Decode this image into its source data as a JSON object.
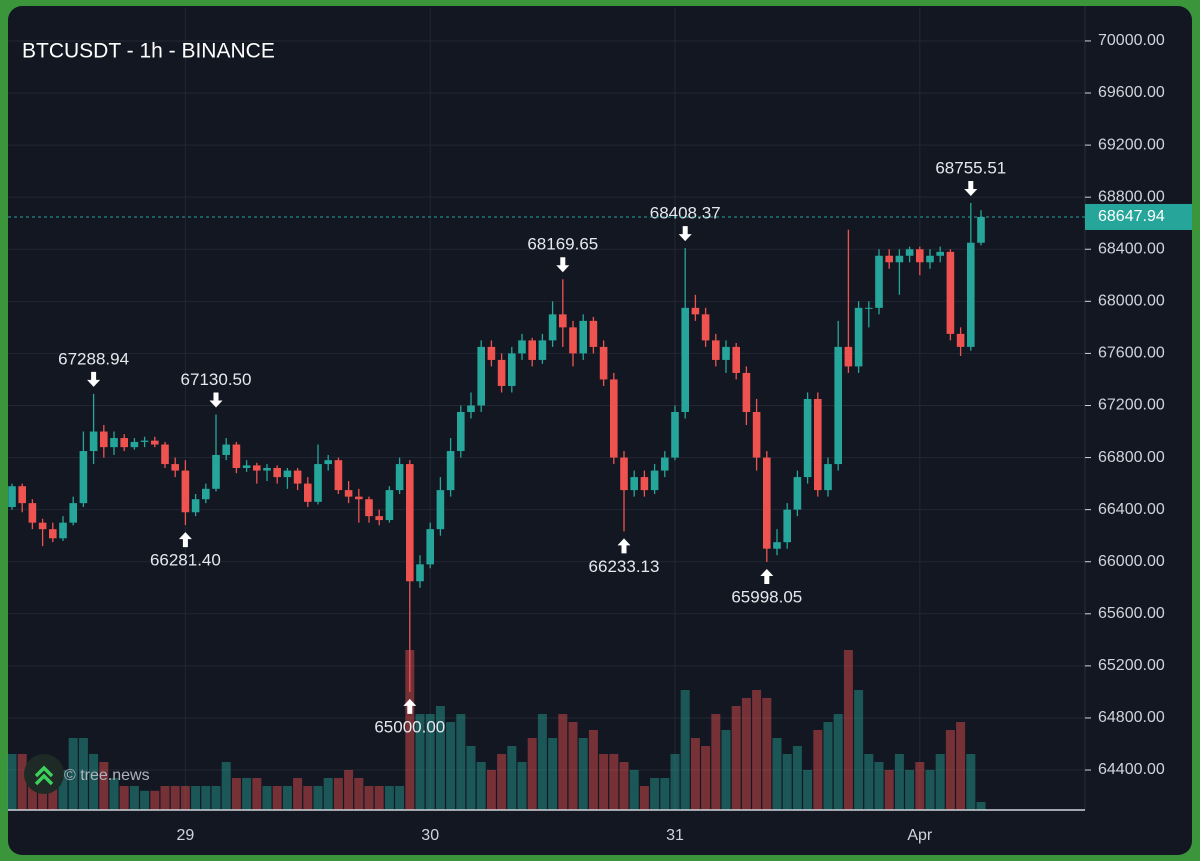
{
  "chart_data": {
    "type": "candlestick",
    "title": "BTCUSDT - 1h - BINANCE",
    "watermark": "© tree.news",
    "categories": [
      null,
      null,
      null,
      null,
      null,
      null,
      null,
      null,
      null,
      null,
      null,
      null,
      null,
      null,
      null,
      null,
      null,
      "29",
      null,
      null,
      null,
      null,
      null,
      null,
      null,
      null,
      null,
      null,
      null,
      null,
      null,
      null,
      null,
      null,
      null,
      null,
      null,
      null,
      null,
      null,
      null,
      "30",
      null,
      null,
      null,
      null,
      null,
      null,
      null,
      null,
      null,
      null,
      null,
      null,
      null,
      null,
      null,
      null,
      null,
      null,
      null,
      null,
      null,
      null,
      null,
      "31",
      null,
      null,
      null,
      null,
      null,
      null,
      null,
      null,
      null,
      null,
      null,
      null,
      null,
      null,
      null,
      null,
      null,
      null,
      null,
      null,
      null,
      null,
      null,
      "Apr",
      null,
      null,
      null,
      null,
      null,
      null
    ],
    "open": [
      66420,
      66580,
      66450,
      66300,
      66250,
      66180,
      66300,
      66450,
      66850,
      67000,
      66880,
      66950,
      66880,
      66920,
      66930,
      66900,
      66750,
      66700,
      66380,
      66480,
      66560,
      66820,
      66900,
      66720,
      66740,
      66700,
      66720,
      66650,
      66700,
      66600,
      66460,
      66750,
      66780,
      66550,
      66500,
      66480,
      66350,
      66320,
      66550,
      66750,
      65850,
      65980,
      66250,
      66550,
      66850,
      67150,
      67200,
      67650,
      67550,
      67350,
      67600,
      67700,
      67550,
      67700,
      67900,
      67800,
      67600,
      67850,
      67650,
      67400,
      66800,
      66550,
      66650,
      66550,
      66700,
      66800,
      67150,
      67950,
      67900,
      67700,
      67550,
      67650,
      67450,
      67150,
      66800,
      66100,
      66150,
      66400,
      66650,
      67250,
      66550,
      66750,
      67650,
      67500,
      67950,
      67950,
      68350,
      68300,
      68350,
      68400,
      68300,
      68350,
      68380,
      67750,
      67650,
      68450
    ],
    "high": [
      66600,
      66600,
      66480,
      66330,
      66300,
      66350,
      66500,
      67000,
      67288.94,
      67050,
      67000,
      66980,
      66950,
      66960,
      66960,
      66920,
      66800,
      66780,
      66520,
      66600,
      67130.5,
      66950,
      66920,
      66780,
      66760,
      66750,
      66740,
      66720,
      66720,
      66650,
      66900,
      66820,
      66800,
      66620,
      66560,
      66500,
      66400,
      66580,
      66800,
      66780,
      66050,
      66300,
      66650,
      66950,
      67200,
      67300,
      67700,
      67700,
      67600,
      67650,
      67750,
      67720,
      67750,
      68000,
      68169.65,
      67850,
      67900,
      67880,
      67700,
      67450,
      66850,
      66700,
      66700,
      66750,
      66850,
      67200,
      68408.37,
      68050,
      67950,
      67750,
      67700,
      67680,
      67500,
      67250,
      66850,
      66250,
      66450,
      66700,
      67300,
      67300,
      66800,
      67850,
      68550,
      68000,
      68000,
      68400,
      68400,
      68400,
      68420,
      68420,
      68400,
      68420,
      68400,
      67800,
      68755.51,
      68700
    ],
    "low": [
      66400,
      66380,
      66250,
      66120,
      66150,
      66160,
      66280,
      66420,
      66750,
      66800,
      66820,
      66850,
      66860,
      66880,
      66880,
      66720,
      66650,
      66281.4,
      66350,
      66450,
      66540,
      66780,
      66680,
      66690,
      66600,
      66620,
      66600,
      66560,
      66550,
      66420,
      66440,
      66700,
      66520,
      66450,
      66300,
      66300,
      66280,
      66300,
      66520,
      65000.0,
      65800,
      65950,
      66200,
      66500,
      66800,
      67100,
      67150,
      67500,
      67300,
      67300,
      67550,
      67500,
      67520,
      67650,
      67650,
      67500,
      67550,
      67600,
      67350,
      66750,
      66233.13,
      66500,
      66500,
      66520,
      66650,
      66780,
      67100,
      67850,
      67650,
      67500,
      67450,
      67400,
      67050,
      66700,
      65998.05,
      66050,
      66100,
      66350,
      66600,
      66500,
      66500,
      66700,
      67450,
      67450,
      67800,
      67900,
      68250,
      68050,
      68300,
      68200,
      68250,
      68300,
      67700,
      67580,
      67620,
      68430
    ],
    "close": [
      66580,
      66450,
      66300,
      66250,
      66180,
      66300,
      66450,
      66850,
      67000,
      66880,
      66950,
      66880,
      66920,
      66930,
      66900,
      66750,
      66700,
      66380,
      66480,
      66560,
      66820,
      66900,
      66720,
      66740,
      66700,
      66720,
      66650,
      66700,
      66600,
      66460,
      66750,
      66780,
      66550,
      66500,
      66480,
      66350,
      66320,
      66550,
      66750,
      65850,
      65980,
      66250,
      66550,
      66850,
      67150,
      67200,
      67650,
      67550,
      67350,
      67600,
      67700,
      67550,
      67700,
      67900,
      67800,
      67600,
      67850,
      67650,
      67400,
      66800,
      66550,
      66650,
      66550,
      66700,
      66800,
      67150,
      67950,
      67900,
      67700,
      67550,
      67650,
      67450,
      67150,
      66800,
      66100,
      66150,
      66400,
      66650,
      67250,
      66550,
      66750,
      67650,
      67500,
      67950,
      67950,
      68350,
      68300,
      68350,
      68400,
      68300,
      68350,
      68380,
      67750,
      67650,
      68450,
      68647.94
    ],
    "volume": [
      35,
      35,
      25,
      20,
      20,
      25,
      45,
      45,
      35,
      30,
      20,
      15,
      15,
      12,
      12,
      15,
      15,
      15,
      15,
      15,
      15,
      30,
      20,
      20,
      20,
      15,
      15,
      15,
      20,
      15,
      15,
      20,
      20,
      25,
      20,
      15,
      15,
      15,
      15,
      100,
      60,
      60,
      65,
      55,
      60,
      40,
      30,
      25,
      35,
      40,
      30,
      45,
      60,
      45,
      60,
      55,
      45,
      50,
      35,
      35,
      30,
      25,
      15,
      20,
      20,
      35,
      75,
      45,
      40,
      60,
      50,
      65,
      70,
      75,
      70,
      45,
      35,
      40,
      25,
      50,
      55,
      60,
      100,
      75,
      35,
      30,
      25,
      35,
      25,
      30,
      25,
      35,
      50,
      55,
      35,
      5
    ],
    "up_color": "#26a69a",
    "down_color": "#ef5350",
    "ylim": [
      64093,
      70253
    ],
    "yticks": [
      {
        "value": 64400,
        "label": "64400.00"
      },
      {
        "value": 64800,
        "label": "64800.00"
      },
      {
        "value": 65200,
        "label": "65200.00"
      },
      {
        "value": 65600,
        "label": "65600.00"
      },
      {
        "value": 66000,
        "label": "66000.00"
      },
      {
        "value": 66400,
        "label": "66400.00"
      },
      {
        "value": 66800,
        "label": "66800.00"
      },
      {
        "value": 67200,
        "label": "67200.00"
      },
      {
        "value": 67600,
        "label": "67600.00"
      },
      {
        "value": 68000,
        "label": "68000.00"
      },
      {
        "value": 68400,
        "label": "68400.00"
      },
      {
        "value": 68800,
        "label": "68800.00"
      },
      {
        "value": 69200,
        "label": "69200.00"
      },
      {
        "value": 69600,
        "label": "69600.00"
      },
      {
        "value": 70000,
        "label": "70000.00"
      }
    ],
    "grid": true,
    "annotations": [
      {
        "value": 67288.94,
        "label": "67288.94"
      },
      {
        "value": 66281.4,
        "label": "66281.40"
      },
      {
        "value": 67130.5,
        "label": "67130.50"
      },
      {
        "value": 65000.0,
        "label": "65000.00"
      },
      {
        "value": 68169.65,
        "label": "68169.65"
      },
      {
        "value": 66233.13,
        "label": "66233.13"
      },
      {
        "value": 68408.37,
        "label": "68408.37"
      },
      {
        "value": 65998.05,
        "label": "65998.05"
      },
      {
        "value": 68755.51,
        "label": "68755.51"
      }
    ]
  }
}
